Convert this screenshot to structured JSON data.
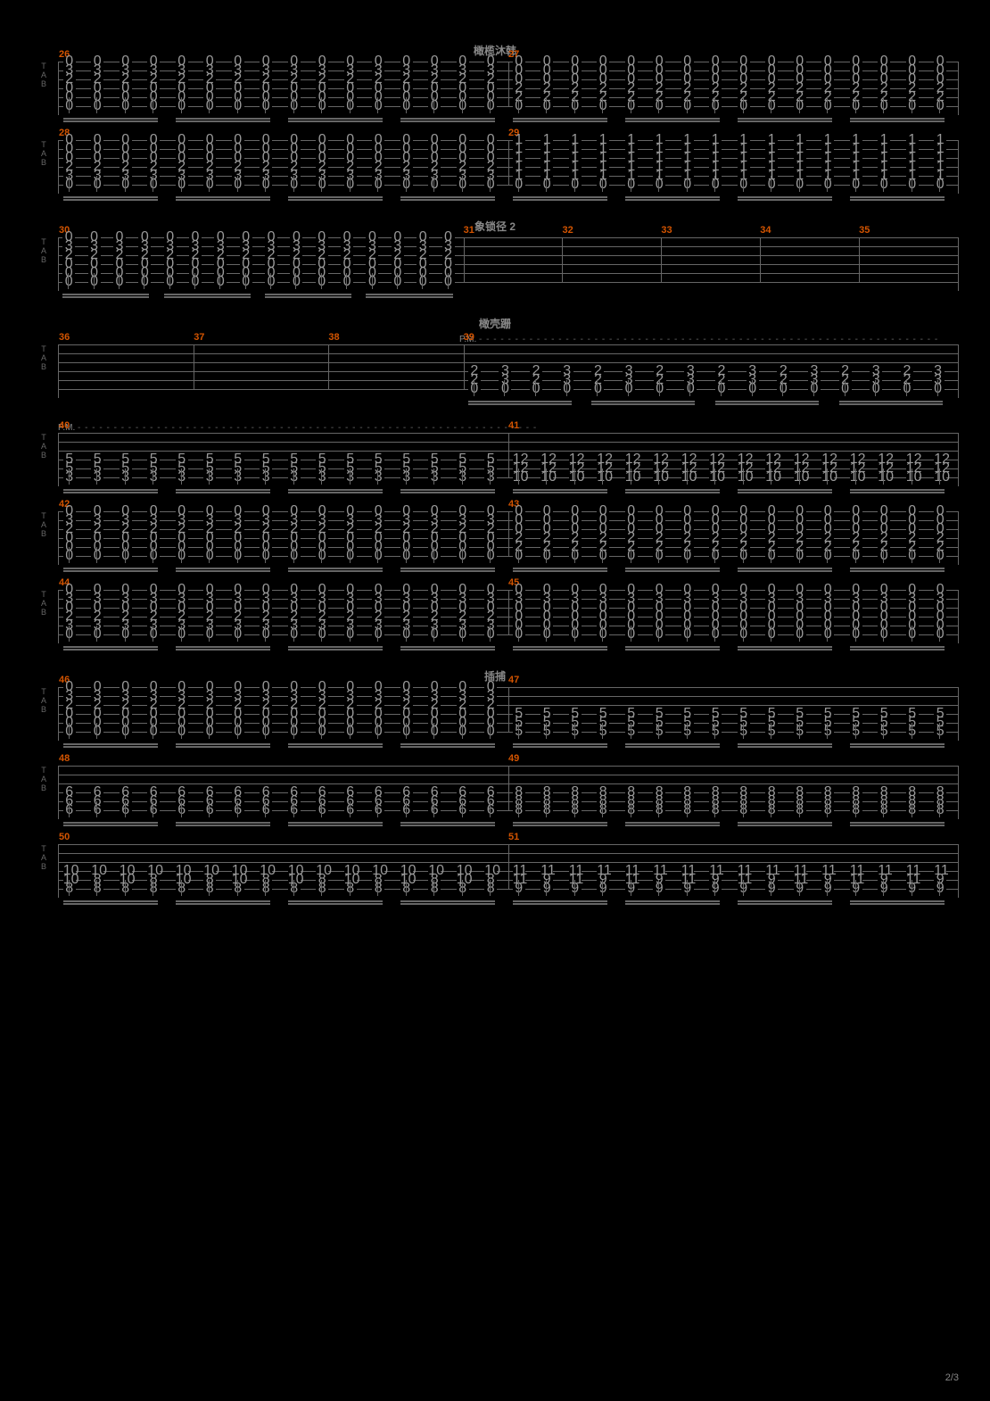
{
  "page_number": "2/3",
  "background_color": "#000000",
  "line_color": "#666666",
  "note_color": "#999999",
  "bar_number_color": "#d35400",
  "section_labels": {
    "s1": "橄榄沐韩",
    "s2": "象锁径 2",
    "s3": "橄壳跚",
    "s4": "插捕"
  },
  "pm_marking": "P.M.",
  "tab_letters": [
    "T",
    "A",
    "B"
  ],
  "systems": [
    {
      "id": "sys1",
      "pre_label": "s1",
      "bars": [
        {
          "num": 26,
          "cols": 16,
          "pattern": [
            [
              "0",
              "3",
              "2",
              "0",
              "0",
              "0"
            ]
          ],
          "beams": 4
        },
        {
          "num": 27,
          "cols": 16,
          "pattern": [
            [
              "0",
              "0",
              "0",
              "2",
              "2",
              "0"
            ]
          ],
          "beams": 4
        }
      ]
    },
    {
      "id": "sys2",
      "bars": [
        {
          "num": 28,
          "cols": 16,
          "pattern": [
            [
              "0",
              "0",
              "0",
              "2",
              "3",
              "0"
            ]
          ],
          "beams": 4
        },
        {
          "num": 29,
          "cols": 16,
          "pattern": [
            [
              "1",
              "1",
              "1",
              "1",
              "1",
              "0"
            ]
          ],
          "beams": 4
        }
      ]
    },
    {
      "id": "sys3",
      "pre_label": "s2",
      "bars": [
        {
          "num": 30,
          "cols": 16,
          "pattern": [
            [
              "0",
              "3",
              "2",
              "0",
              "0",
              "0"
            ]
          ],
          "beams": 4,
          "width_pct": 45
        },
        {
          "num": 31,
          "cols": 0,
          "empty": true,
          "width_pct": 11
        },
        {
          "num": 32,
          "cols": 0,
          "empty": true,
          "width_pct": 11
        },
        {
          "num": 33,
          "cols": 0,
          "empty": true,
          "width_pct": 11
        },
        {
          "num": 34,
          "cols": 0,
          "empty": true,
          "width_pct": 11
        },
        {
          "num": 35,
          "cols": 0,
          "empty": true,
          "width_pct": 11
        }
      ]
    },
    {
      "id": "sys4",
      "pre_label": "s3",
      "pm_on_bar": 39,
      "bars": [
        {
          "num": 36,
          "cols": 0,
          "empty": true,
          "width_pct": 15
        },
        {
          "num": 37,
          "cols": 0,
          "empty": true,
          "width_pct": 15
        },
        {
          "num": 38,
          "cols": 0,
          "empty": true,
          "width_pct": 15
        },
        {
          "num": 39,
          "cols": 16,
          "pattern": [
            [
              "",
              "",
              "",
              "2",
              "2",
              "0"
            ],
            [
              "",
              "",
              "",
              "3",
              "3",
              "0"
            ]
          ],
          "alternating": true,
          "beams": 4,
          "width_pct": 55
        }
      ]
    },
    {
      "id": "sys5",
      "pm_on_bar": 40,
      "bars": [
        {
          "num": 40,
          "cols": 16,
          "pattern": [
            [
              "",
              "",
              "",
              "5",
              "5",
              "3"
            ]
          ],
          "beams": 4
        },
        {
          "num": 41,
          "cols": 16,
          "pattern": [
            [
              "",
              "",
              "",
              "12",
              "12",
              "10"
            ]
          ],
          "beams": 4
        }
      ]
    },
    {
      "id": "sys6",
      "bars": [
        {
          "num": 42,
          "cols": 16,
          "pattern": [
            [
              "0",
              "3",
              "2",
              "0",
              "0",
              "0"
            ]
          ],
          "beams": 4
        },
        {
          "num": 43,
          "cols": 16,
          "pattern": [
            [
              "0",
              "0",
              "0",
              "2",
              "2",
              "0"
            ]
          ],
          "beams": 4
        }
      ]
    },
    {
      "id": "sys7",
      "bars": [
        {
          "num": 44,
          "cols": 16,
          "pattern": [
            [
              "0",
              "3",
              "0",
              "2",
              "3",
              "0"
            ]
          ],
          "beams": 4
        },
        {
          "num": 45,
          "cols": 16,
          "pattern": [
            [
              "0",
              "3",
              "0",
              "0",
              "0",
              "0"
            ]
          ],
          "beams": 4
        }
      ]
    },
    {
      "id": "sys8",
      "pre_label": "s4",
      "bars": [
        {
          "num": 46,
          "cols": 16,
          "pattern": [
            [
              "0",
              "3",
              "2",
              "0",
              "0",
              "0"
            ]
          ],
          "beams": 4
        },
        {
          "num": 47,
          "cols": 16,
          "pattern": [
            [
              "",
              "",
              "",
              "5",
              "5",
              "5"
            ]
          ],
          "beams": 4
        }
      ]
    },
    {
      "id": "sys9",
      "bars": [
        {
          "num": 48,
          "cols": 16,
          "pattern": [
            [
              "",
              "",
              "",
              "6",
              "6",
              "6"
            ]
          ],
          "beams": 4
        },
        {
          "num": 49,
          "cols": 16,
          "pattern": [
            [
              "",
              "",
              "",
              "8",
              "8",
              "8"
            ]
          ],
          "beams": 4
        }
      ]
    },
    {
      "id": "sys10",
      "bars": [
        {
          "num": 50,
          "cols": 16,
          "pattern": [
            [
              "",
              "",
              "",
              "10",
              "10",
              "8"
            ],
            [
              "",
              "",
              "",
              "10",
              "8",
              "8"
            ]
          ],
          "alternating": true,
          "beams": 4
        },
        {
          "num": 51,
          "cols": 16,
          "pattern": [
            [
              "",
              "",
              "",
              "11",
              "11",
              "9"
            ],
            [
              "",
              "",
              "",
              "11",
              "9",
              "9"
            ]
          ],
          "alternating": true,
          "beams": 4
        }
      ]
    }
  ]
}
